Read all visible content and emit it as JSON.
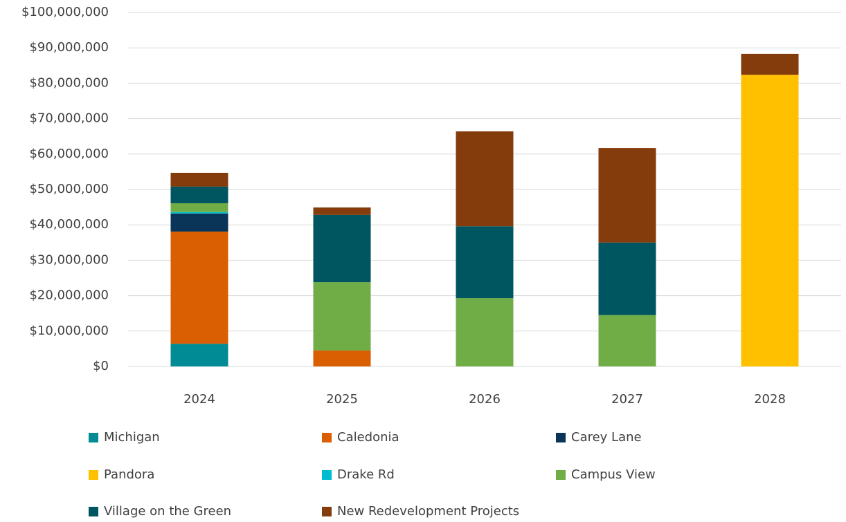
{
  "chart_data": {
    "type": "stacked_bar",
    "categories": [
      "2024",
      "2025",
      "2026",
      "2027",
      "2028"
    ],
    "series": [
      {
        "name": "Michigan",
        "color": "#008b95",
        "values": [
          6400000,
          0,
          0,
          0,
          0
        ]
      },
      {
        "name": "Caledonia",
        "color": "#d95f02",
        "values": [
          31700000,
          4500000,
          0,
          0,
          0
        ]
      },
      {
        "name": "Carey Lane",
        "color": "#0a3558",
        "values": [
          5100000,
          0,
          0,
          0,
          0
        ]
      },
      {
        "name": "Pandora",
        "color": "#ffc000",
        "values": [
          0,
          0,
          0,
          0,
          82400000
        ]
      },
      {
        "name": "Drake Rd",
        "color": "#00bcd0",
        "values": [
          400000,
          0,
          0,
          0,
          0
        ]
      },
      {
        "name": "Campus View",
        "color": "#70ad47",
        "values": [
          2500000,
          19300000,
          19300000,
          14500000,
          0
        ]
      },
      {
        "name": "Village on the Green",
        "color": "#005660",
        "values": [
          4700000,
          19000000,
          20300000,
          20500000,
          0
        ]
      },
      {
        "name": "New Redevelopment Projects",
        "color": "#843c0c",
        "values": [
          3900000,
          2100000,
          26800000,
          26700000,
          5900000
        ]
      }
    ],
    "ylim": [
      0,
      100000000
    ],
    "yticks": [
      {
        "value": 0,
        "label": "$0"
      },
      {
        "value": 10000000,
        "label": "$10,000,000"
      },
      {
        "value": 20000000,
        "label": "$20,000,000"
      },
      {
        "value": 30000000,
        "label": "$30,000,000"
      },
      {
        "value": 40000000,
        "label": "$40,000,000"
      },
      {
        "value": 50000000,
        "label": "$50,000,000"
      },
      {
        "value": 60000000,
        "label": "$60,000,000"
      },
      {
        "value": 70000000,
        "label": "$70,000,000"
      },
      {
        "value": 80000000,
        "label": "$80,000,000"
      },
      {
        "value": 90000000,
        "label": "$90,000,000"
      },
      {
        "value": 100000000,
        "label": "$100,000,000"
      }
    ],
    "grid": true,
    "legend": "bottom"
  }
}
